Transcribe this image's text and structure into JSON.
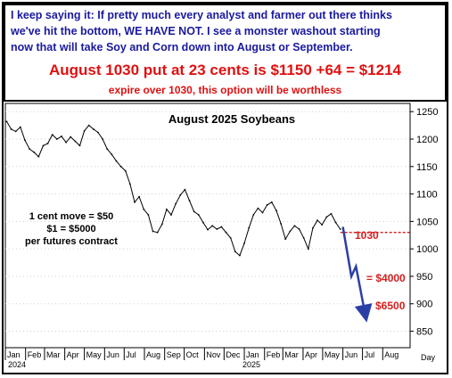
{
  "notice": {
    "line1": "I keep saying it: If pretty much every analyst and farmer out there thinks",
    "line2": "we've hit the bottom, WE HAVE NOT. I see a monster washout starting",
    "line3": "now that will take Soy and Corn down into August or September.",
    "headline": "August 1030 put at 23 cents is $1150 +64 = $1214",
    "subline": "expire over 1030, this option will be worthless"
  },
  "colors": {
    "notice_text": "#1a1a9e",
    "alert_red": "#e01010",
    "projection_blue": "#2a3fa6",
    "strike_line": "#d42020"
  },
  "chart_data": {
    "type": "line",
    "title": "August 2025 Soybeans",
    "xlabel": "Day",
    "ylabel": "",
    "ylim": [
      820,
      1265
    ],
    "yticks": [
      850,
      900,
      950,
      1000,
      1050,
      1100,
      1150,
      1200,
      1250
    ],
    "month_ticks": [
      "Jan",
      "Feb",
      "Mar",
      "Apr",
      "May",
      "Jun",
      "Jul",
      "Aug",
      "Sep",
      "Oct",
      "Nov",
      "Dec",
      "Jan",
      "Feb",
      "Mar",
      "Apr",
      "May",
      "Jun",
      "Jul",
      "Aug"
    ],
    "year_labels": [
      "2024",
      "2025"
    ],
    "annotations": {
      "cent_move": [
        "1 cent move = $50",
        "$1 = $5000",
        "per futures contract"
      ],
      "strike_label": "1030",
      "target1_label": "= $4000",
      "target2_label": "$6500"
    },
    "strike_level": 1030,
    "series": [
      {
        "values": [
          {
            "d": "2024-01-03",
            "c": 1232
          },
          {
            "d": "2024-01-10",
            "c": 1218
          },
          {
            "d": "2024-01-17",
            "c": 1214
          },
          {
            "d": "2024-01-24",
            "c": 1222
          },
          {
            "d": "2024-01-31",
            "c": 1198
          },
          {
            "d": "2024-02-07",
            "c": 1182
          },
          {
            "d": "2024-02-14",
            "c": 1176
          },
          {
            "d": "2024-02-21",
            "c": 1168
          },
          {
            "d": "2024-02-28",
            "c": 1188
          },
          {
            "d": "2024-03-06",
            "c": 1192
          },
          {
            "d": "2024-03-13",
            "c": 1208
          },
          {
            "d": "2024-03-20",
            "c": 1200
          },
          {
            "d": "2024-03-27",
            "c": 1205
          },
          {
            "d": "2024-04-03",
            "c": 1194
          },
          {
            "d": "2024-04-10",
            "c": 1204
          },
          {
            "d": "2024-04-17",
            "c": 1196
          },
          {
            "d": "2024-04-24",
            "c": 1188
          },
          {
            "d": "2024-05-01",
            "c": 1215
          },
          {
            "d": "2024-05-08",
            "c": 1225
          },
          {
            "d": "2024-05-15",
            "c": 1218
          },
          {
            "d": "2024-05-22",
            "c": 1212
          },
          {
            "d": "2024-05-29",
            "c": 1200
          },
          {
            "d": "2024-06-05",
            "c": 1182
          },
          {
            "d": "2024-06-12",
            "c": 1172
          },
          {
            "d": "2024-06-19",
            "c": 1160
          },
          {
            "d": "2024-06-26",
            "c": 1150
          },
          {
            "d": "2024-07-03",
            "c": 1142
          },
          {
            "d": "2024-07-10",
            "c": 1118
          },
          {
            "d": "2024-07-17",
            "c": 1085
          },
          {
            "d": "2024-07-24",
            "c": 1095
          },
          {
            "d": "2024-07-31",
            "c": 1072
          },
          {
            "d": "2024-08-07",
            "c": 1062
          },
          {
            "d": "2024-08-14",
            "c": 1032
          },
          {
            "d": "2024-08-21",
            "c": 1030
          },
          {
            "d": "2024-08-28",
            "c": 1045
          },
          {
            "d": "2024-09-04",
            "c": 1072
          },
          {
            "d": "2024-09-11",
            "c": 1062
          },
          {
            "d": "2024-09-18",
            "c": 1082
          },
          {
            "d": "2024-09-25",
            "c": 1098
          },
          {
            "d": "2024-10-02",
            "c": 1108
          },
          {
            "d": "2024-10-09",
            "c": 1088
          },
          {
            "d": "2024-10-16",
            "c": 1068
          },
          {
            "d": "2024-10-23",
            "c": 1062
          },
          {
            "d": "2024-10-30",
            "c": 1048
          },
          {
            "d": "2024-11-06",
            "c": 1035
          },
          {
            "d": "2024-11-13",
            "c": 1042
          },
          {
            "d": "2024-11-20",
            "c": 1036
          },
          {
            "d": "2024-11-27",
            "c": 1040
          },
          {
            "d": "2024-12-04",
            "c": 1030
          },
          {
            "d": "2024-12-11",
            "c": 1020
          },
          {
            "d": "2024-12-18",
            "c": 995
          },
          {
            "d": "2024-12-25",
            "c": 988
          },
          {
            "d": "2025-01-01",
            "c": 1010
          },
          {
            "d": "2025-01-08",
            "c": 1038
          },
          {
            "d": "2025-01-15",
            "c": 1062
          },
          {
            "d": "2025-01-22",
            "c": 1074
          },
          {
            "d": "2025-01-29",
            "c": 1066
          },
          {
            "d": "2025-02-05",
            "c": 1080
          },
          {
            "d": "2025-02-12",
            "c": 1085
          },
          {
            "d": "2025-02-19",
            "c": 1070
          },
          {
            "d": "2025-02-26",
            "c": 1046
          },
          {
            "d": "2025-03-05",
            "c": 1018
          },
          {
            "d": "2025-03-12",
            "c": 1032
          },
          {
            "d": "2025-03-19",
            "c": 1042
          },
          {
            "d": "2025-03-26",
            "c": 1036
          },
          {
            "d": "2025-04-02",
            "c": 1020
          },
          {
            "d": "2025-04-09",
            "c": 1000
          },
          {
            "d": "2025-04-16",
            "c": 1038
          },
          {
            "d": "2025-04-23",
            "c": 1052
          },
          {
            "d": "2025-04-30",
            "c": 1044
          },
          {
            "d": "2025-05-07",
            "c": 1058
          },
          {
            "d": "2025-05-14",
            "c": 1064
          },
          {
            "d": "2025-05-21",
            "c": 1048
          },
          {
            "d": "2025-05-28",
            "c": 1036
          }
        ]
      }
    ],
    "projection": [
      {
        "d": "2025-06-01",
        "c": 1040
      },
      {
        "d": "2025-06-14",
        "c": 950
      },
      {
        "d": "2025-06-21",
        "c": 968
      },
      {
        "d": "2025-07-05",
        "c": 882
      }
    ]
  }
}
